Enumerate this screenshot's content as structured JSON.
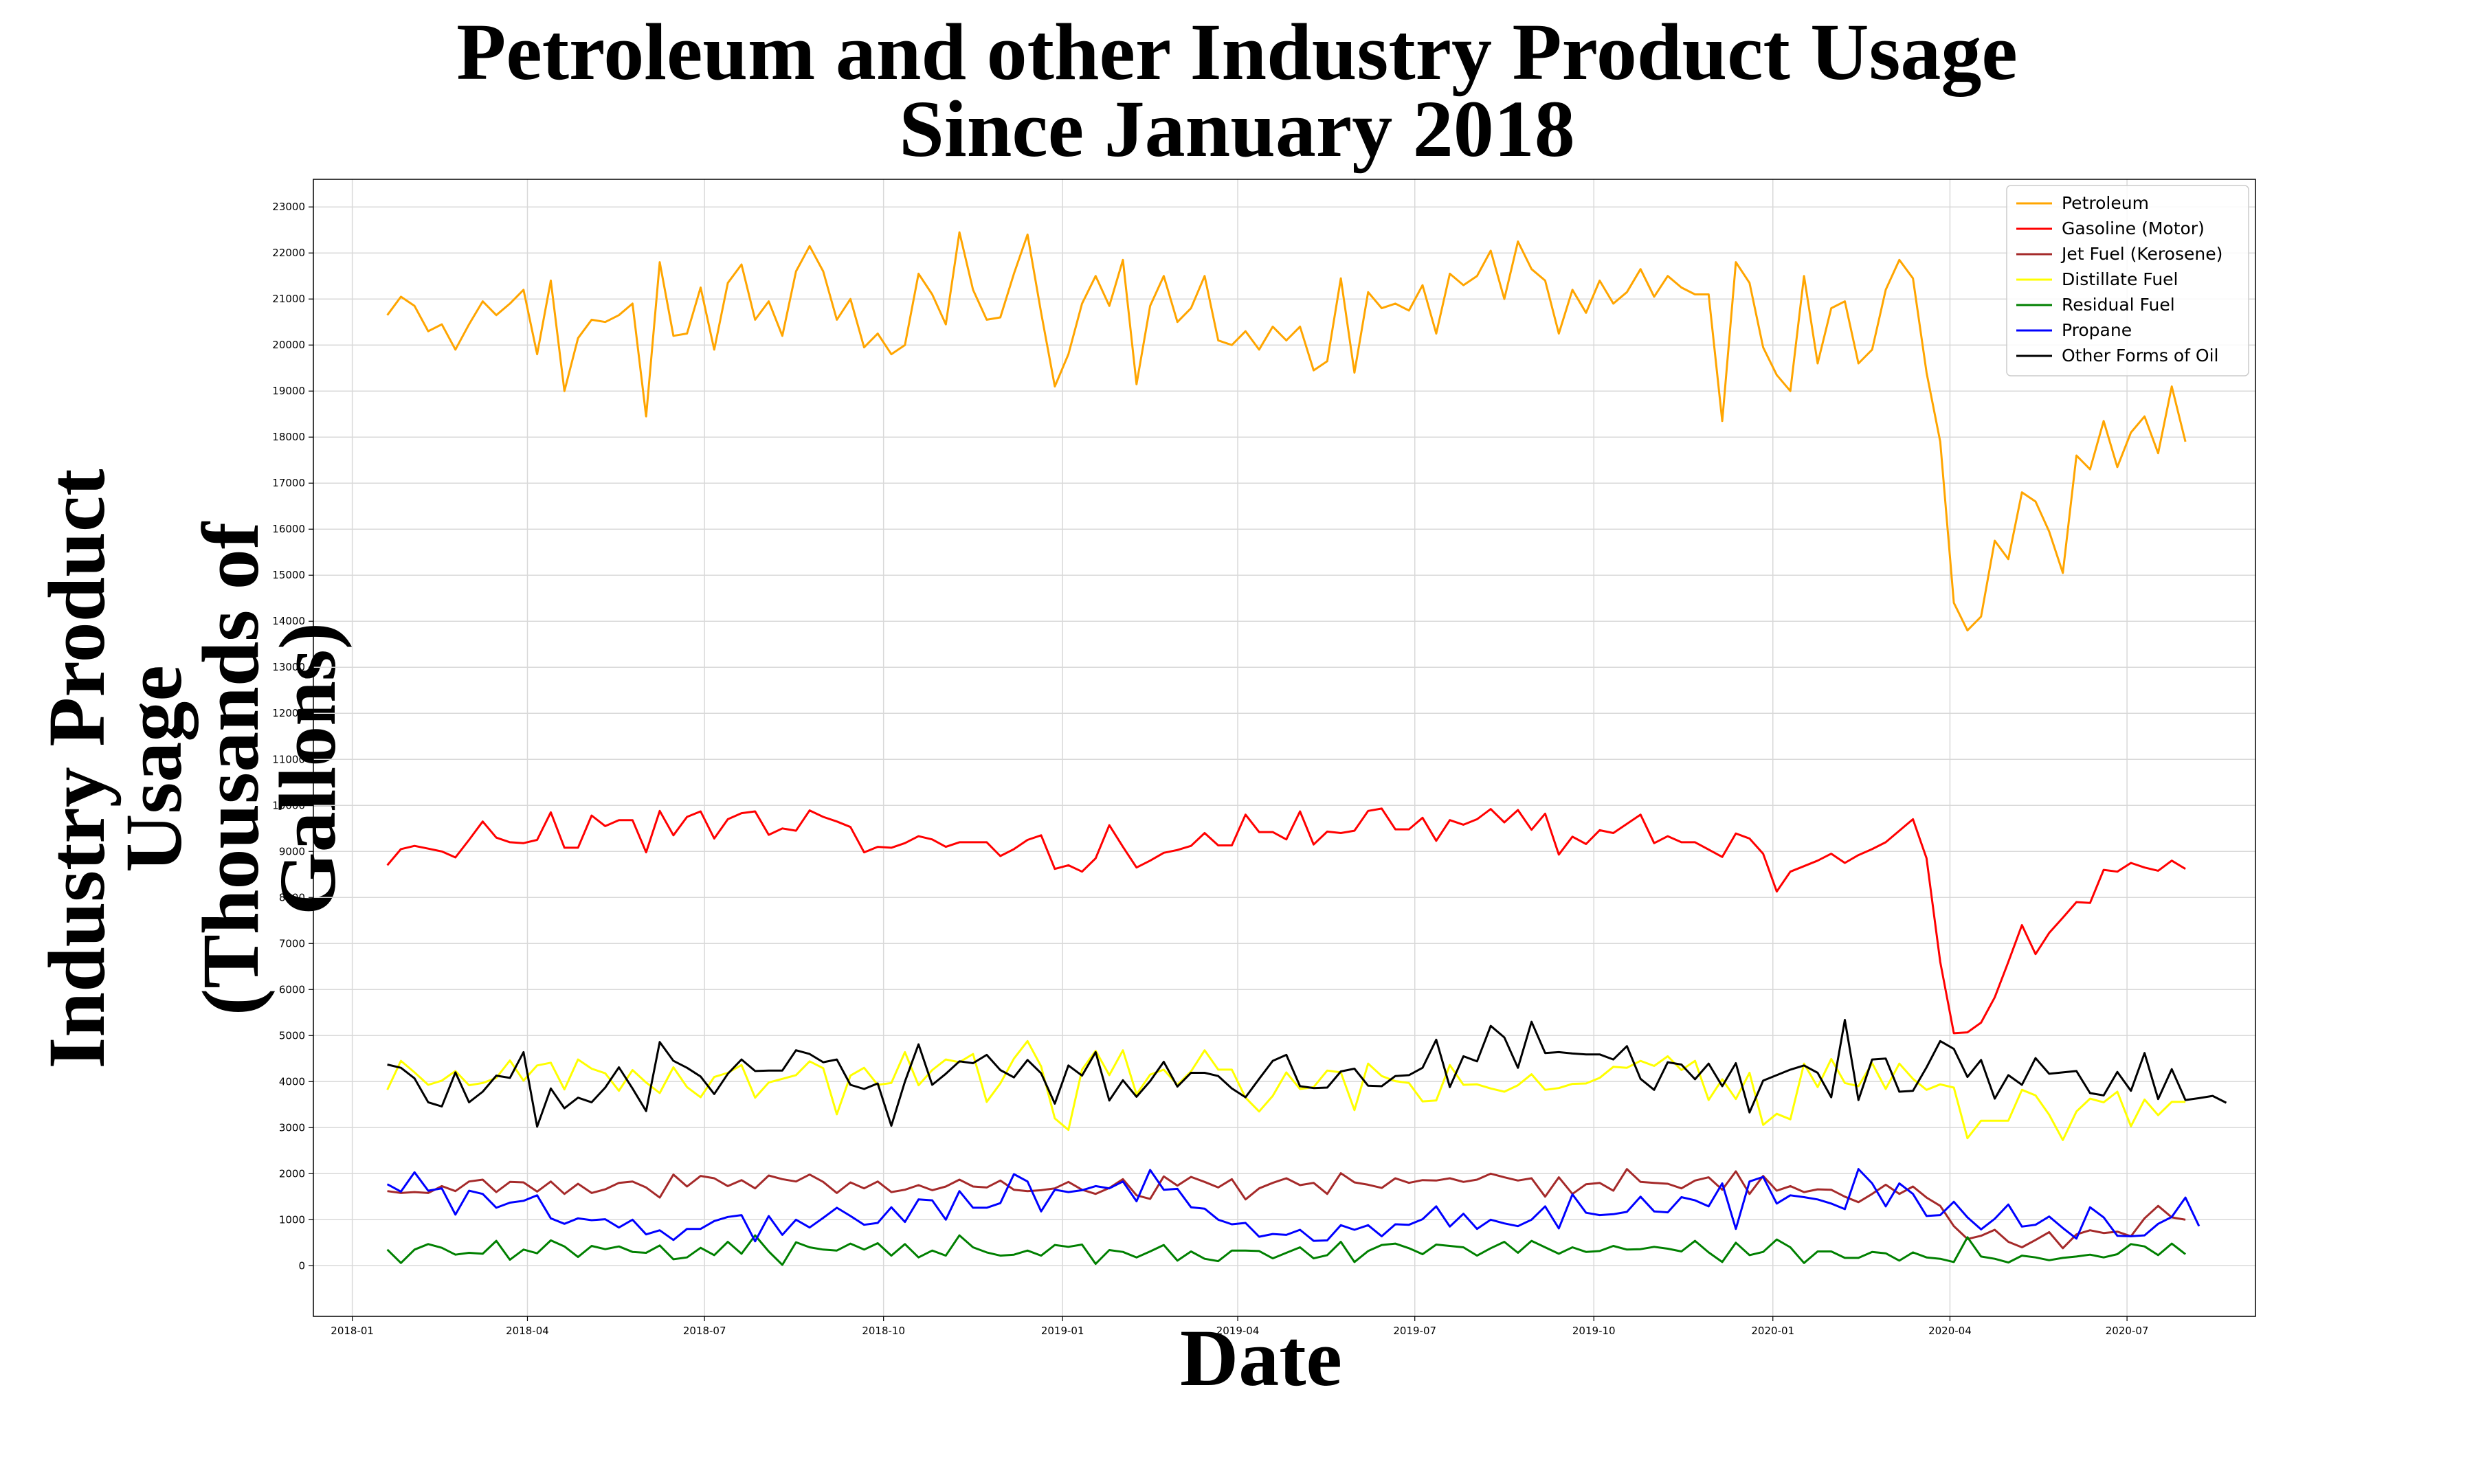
{
  "chart_data": {
    "type": "line",
    "title": "Petroleum and other Industry Product Usage\nSince January 2018",
    "xlabel": "Date",
    "ylabel": "Industry Product Usage\n(Thousands of Gallons)",
    "x_start": "2018-01-19",
    "x_step_days": 7,
    "x_ticks": [
      "2018-01",
      "2018-04",
      "2018-07",
      "2018-10",
      "2019-01",
      "2019-04",
      "2019-07",
      "2019-10",
      "2020-01",
      "2020-04",
      "2020-07"
    ],
    "y_ticks": [
      0,
      1000,
      2000,
      3000,
      4000,
      5000,
      6000,
      7000,
      8000,
      9000,
      10000,
      11000,
      12000,
      13000,
      14000,
      15000,
      16000,
      17000,
      18000,
      19000,
      20000,
      21000,
      22000,
      23000
    ],
    "ylim": [
      -1100,
      23600
    ],
    "xlim": [
      "2017-12-12",
      "2020-09-05"
    ],
    "grid": true,
    "legend_position": "top-right",
    "series": [
      {
        "name": "Petroleum",
        "color": "#ffa500",
        "values": [
          20650,
          21050,
          20850,
          20300,
          20450,
          19900,
          20450,
          20950,
          20650,
          20900,
          21200,
          19800,
          21400,
          19000,
          20150,
          20550,
          20500,
          20650,
          20900,
          18450,
          21800,
          20200,
          20250,
          21250,
          19900,
          21350,
          21750,
          20550,
          20950,
          20200,
          21600,
          22150,
          21600,
          20550,
          21000,
          19950,
          20250,
          19800,
          20000,
          21550,
          21100,
          20450,
          22450,
          21200,
          20550,
          20600,
          21550,
          22400,
          20700,
          19100,
          19800,
          20900,
          21500,
          20850,
          21850,
          19150,
          20850,
          21500,
          20500,
          20800,
          21500,
          20100,
          20000,
          20300,
          19900,
          20400,
          20100,
          20400,
          19450,
          19650,
          21450,
          19400,
          21150,
          20800,
          20900,
          20750,
          21300,
          20250,
          21550,
          21300,
          21500,
          22050,
          21000,
          22250,
          21650,
          21400,
          20250,
          21200,
          20700,
          21400,
          20900,
          21150,
          21650,
          21050,
          21500,
          21250,
          21100,
          21100,
          18350,
          21800,
          21350,
          19950,
          19350,
          19000,
          21500,
          19600,
          20800,
          20950,
          19600,
          19900,
          21200,
          21850,
          21450,
          19400,
          17900,
          14400,
          13800,
          14100,
          15750,
          15350,
          16800,
          16600,
          15950,
          15050,
          17600,
          17300,
          18350,
          17350,
          18100,
          18450,
          17650,
          19100,
          17900
        ]
      },
      {
        "name": "Gasoline (Motor)",
        "color": "#ff0000",
        "values": [
          8700,
          9050,
          9120,
          9060,
          9000,
          8870,
          9250,
          9650,
          9300,
          9200,
          9180,
          9250,
          9850,
          9080,
          9080,
          9780,
          9550,
          9680,
          9680,
          8980,
          9880,
          9350,
          9750,
          9870,
          9280,
          9700,
          9830,
          9870,
          9360,
          9500,
          9450,
          9890,
          9750,
          9650,
          9530,
          8980,
          9100,
          9080,
          9180,
          9330,
          9260,
          9100,
          9200,
          9200,
          9200,
          8900,
          9050,
          9250,
          9350,
          8620,
          8700,
          8560,
          8850,
          9570,
          9100,
          8650,
          8800,
          8970,
          9030,
          9120,
          9400,
          9130,
          9130,
          9800,
          9420,
          9420,
          9260,
          9870,
          9150,
          9430,
          9400,
          9450,
          9880,
          9930,
          9480,
          9480,
          9730,
          9230,
          9680,
          9580,
          9700,
          9920,
          9630,
          9900,
          9470,
          9820,
          8930,
          9320,
          9160,
          9460,
          9400,
          9600,
          9800,
          9180,
          9330,
          9200,
          9200,
          9040,
          8880,
          9390,
          9280,
          8950,
          8130,
          8560,
          8680,
          8800,
          8950,
          8750,
          8920,
          9050,
          9200,
          9450,
          9700,
          8850,
          6600,
          5050,
          5070,
          5280,
          5830,
          6600,
          7400,
          6770,
          7230,
          7560,
          7900,
          7880,
          8600,
          8560,
          8750,
          8650,
          8580,
          8800,
          8620
        ]
      },
      {
        "name": "Jet Fuel (Kerosene)",
        "color": "#a52a2a",
        "values": [
          1620,
          1580,
          1600,
          1580,
          1730,
          1620,
          1830,
          1870,
          1600,
          1820,
          1810,
          1610,
          1830,
          1560,
          1780,
          1580,
          1660,
          1800,
          1830,
          1700,
          1480,
          1980,
          1720,
          1950,
          1900,
          1730,
          1860,
          1680,
          1960,
          1880,
          1830,
          1980,
          1820,
          1580,
          1810,
          1680,
          1830,
          1600,
          1650,
          1750,
          1640,
          1720,
          1870,
          1720,
          1700,
          1850,
          1650,
          1620,
          1640,
          1680,
          1820,
          1650,
          1560,
          1690,
          1880,
          1530,
          1450,
          1940,
          1740,
          1930,
          1820,
          1700,
          1880,
          1440,
          1680,
          1800,
          1900,
          1750,
          1800,
          1560,
          2010,
          1810,
          1760,
          1690,
          1900,
          1800,
          1860,
          1850,
          1900,
          1820,
          1870,
          2000,
          1920,
          1850,
          1900,
          1500,
          1920,
          1560,
          1770,
          1800,
          1630,
          2100,
          1820,
          1800,
          1780,
          1680,
          1850,
          1920,
          1650,
          2050,
          1560,
          1950,
          1630,
          1730,
          1600,
          1660,
          1650,
          1500,
          1380,
          1560,
          1760,
          1560,
          1720,
          1480,
          1300,
          860,
          580,
          650,
          780,
          520,
          400,
          560,
          730,
          380,
          680,
          770,
          710,
          740,
          640,
          1030,
          1300,
          1050,
          1000
        ]
      },
      {
        "name": "Distillate Fuel",
        "color": "#ffff00",
        "values": [
          3820,
          4450,
          4200,
          3930,
          4020,
          4230,
          3920,
          3970,
          4080,
          4460,
          4020,
          4350,
          4410,
          3830,
          4480,
          4280,
          4180,
          3800,
          4250,
          3980,
          3750,
          4310,
          3880,
          3660,
          4100,
          4190,
          4360,
          3650,
          3980,
          4060,
          4140,
          4440,
          4290,
          3290,
          4130,
          4300,
          3930,
          3970,
          4640,
          3920,
          4250,
          4480,
          4420,
          4600,
          3560,
          3960,
          4500,
          4880,
          4330,
          3200,
          2950,
          4260,
          4670,
          4140,
          4680,
          3720,
          4150,
          4260,
          3930,
          4220,
          4680,
          4260,
          4260,
          3650,
          3350,
          3690,
          4200,
          3840,
          3880,
          4240,
          4200,
          3380,
          4390,
          4120,
          4010,
          3970,
          3570,
          3590,
          4360,
          3930,
          3940,
          3850,
          3780,
          3920,
          4160,
          3820,
          3860,
          3950,
          3960,
          4080,
          4320,
          4300,
          4450,
          4340,
          4550,
          4250,
          4450,
          3600,
          4050,
          3620,
          4190,
          3060,
          3300,
          3180,
          4390,
          3880,
          4490,
          3970,
          3900,
          4400,
          3840,
          4390,
          4060,
          3820,
          3940,
          3870,
          2770,
          3150,
          3150,
          3150,
          3820,
          3700,
          3280,
          2730,
          3350,
          3630,
          3550,
          3780,
          3030,
          3610,
          3270,
          3560,
          3560
        ]
      },
      {
        "name": "Residual Fuel",
        "color": "#008000",
        "values": [
          350,
          60,
          350,
          470,
          390,
          240,
          280,
          260,
          540,
          130,
          350,
          270,
          550,
          420,
          190,
          430,
          360,
          420,
          300,
          280,
          440,
          140,
          180,
          390,
          230,
          520,
          260,
          660,
          310,
          20,
          510,
          400,
          350,
          330,
          480,
          350,
          490,
          220,
          470,
          180,
          330,
          220,
          660,
          400,
          290,
          220,
          240,
          330,
          220,
          450,
          410,
          460,
          40,
          340,
          300,
          180,
          310,
          450,
          110,
          310,
          150,
          100,
          330,
          330,
          320,
          160,
          280,
          400,
          160,
          230,
          520,
          80,
          320,
          450,
          480,
          380,
          250,
          460,
          430,
          400,
          220,
          380,
          520,
          280,
          540,
          400,
          260,
          400,
          300,
          320,
          430,
          350,
          360,
          410,
          370,
          310,
          540,
          290,
          80,
          500,
          230,
          300,
          570,
          400,
          60,
          310,
          310,
          170,
          170,
          300,
          270,
          110,
          290,
          180,
          150,
          80,
          620,
          200,
          150,
          70,
          220,
          180,
          120,
          170,
          200,
          240,
          180,
          250,
          470,
          420,
          230,
          480,
          250
        ]
      },
      {
        "name": "Propane",
        "color": "#0000ff",
        "values": [
          1770,
          1610,
          2030,
          1630,
          1680,
          1110,
          1630,
          1560,
          1260,
          1370,
          1410,
          1530,
          1030,
          910,
          1030,
          990,
          1010,
          830,
          1000,
          680,
          770,
          560,
          800,
          800,
          970,
          1060,
          1100,
          530,
          1080,
          670,
          1000,
          830,
          1040,
          1260,
          1080,
          890,
          930,
          1270,
          950,
          1440,
          1420,
          1000,
          1620,
          1260,
          1260,
          1360,
          1990,
          1830,
          1180,
          1650,
          1600,
          1640,
          1730,
          1680,
          1830,
          1400,
          2080,
          1650,
          1670,
          1270,
          1240,
          1000,
          900,
          930,
          630,
          690,
          670,
          780,
          540,
          550,
          880,
          780,
          880,
          640,
          900,
          890,
          1010,
          1290,
          850,
          1130,
          800,
          1000,
          920,
          860,
          1000,
          1290,
          810,
          1550,
          1150,
          1100,
          1120,
          1170,
          1500,
          1180,
          1160,
          1490,
          1420,
          1290,
          1790,
          800,
          1830,
          1930,
          1350,
          1530,
          1490,
          1440,
          1350,
          1230,
          2100,
          1790,
          1290,
          1790,
          1560,
          1080,
          1100,
          1390,
          1050,
          790,
          1020,
          1330,
          850,
          890,
          1070,
          820,
          590,
          1270,
          1050,
          650,
          640,
          660,
          910,
          1060,
          1480,
          860
        ]
      },
      {
        "name": "Other Forms of Oil",
        "color": "#000000",
        "values": [
          4370,
          4300,
          4070,
          3550,
          3460,
          4200,
          3550,
          3780,
          4130,
          4080,
          4640,
          3020,
          3850,
          3420,
          3650,
          3550,
          3870,
          4310,
          3850,
          3360,
          4860,
          4450,
          4300,
          4110,
          3730,
          4170,
          4480,
          4230,
          4240,
          4240,
          4680,
          4600,
          4420,
          4480,
          3930,
          3840,
          3960,
          3040,
          4000,
          4810,
          3930,
          4170,
          4440,
          4400,
          4580,
          4250,
          4090,
          4470,
          4180,
          3520,
          4350,
          4130,
          4640,
          3590,
          4030,
          3670,
          4010,
          4430,
          3890,
          4190,
          4190,
          4120,
          3850,
          3660,
          4060,
          4450,
          4580,
          3900,
          3860,
          3870,
          4220,
          4280,
          3910,
          3900,
          4120,
          4140,
          4300,
          4910,
          3880,
          4550,
          4440,
          5210,
          4960,
          4300,
          5300,
          4620,
          4640,
          4610,
          4590,
          4590,
          4480,
          4770,
          4060,
          3820,
          4420,
          4370,
          4050,
          4390,
          3900,
          4400,
          3330,
          4020,
          4140,
          4260,
          4350,
          4190,
          3660,
          5340,
          3600,
          4480,
          4500,
          3780,
          3800,
          4310,
          4880,
          4710,
          4100,
          4470,
          3630,
          4140,
          3930,
          4510,
          4170,
          4200,
          4230,
          3750,
          3700,
          4210,
          3800,
          4620,
          3620,
          4270,
          3600,
          3640,
          3690,
          3540
        ]
      }
    ]
  }
}
